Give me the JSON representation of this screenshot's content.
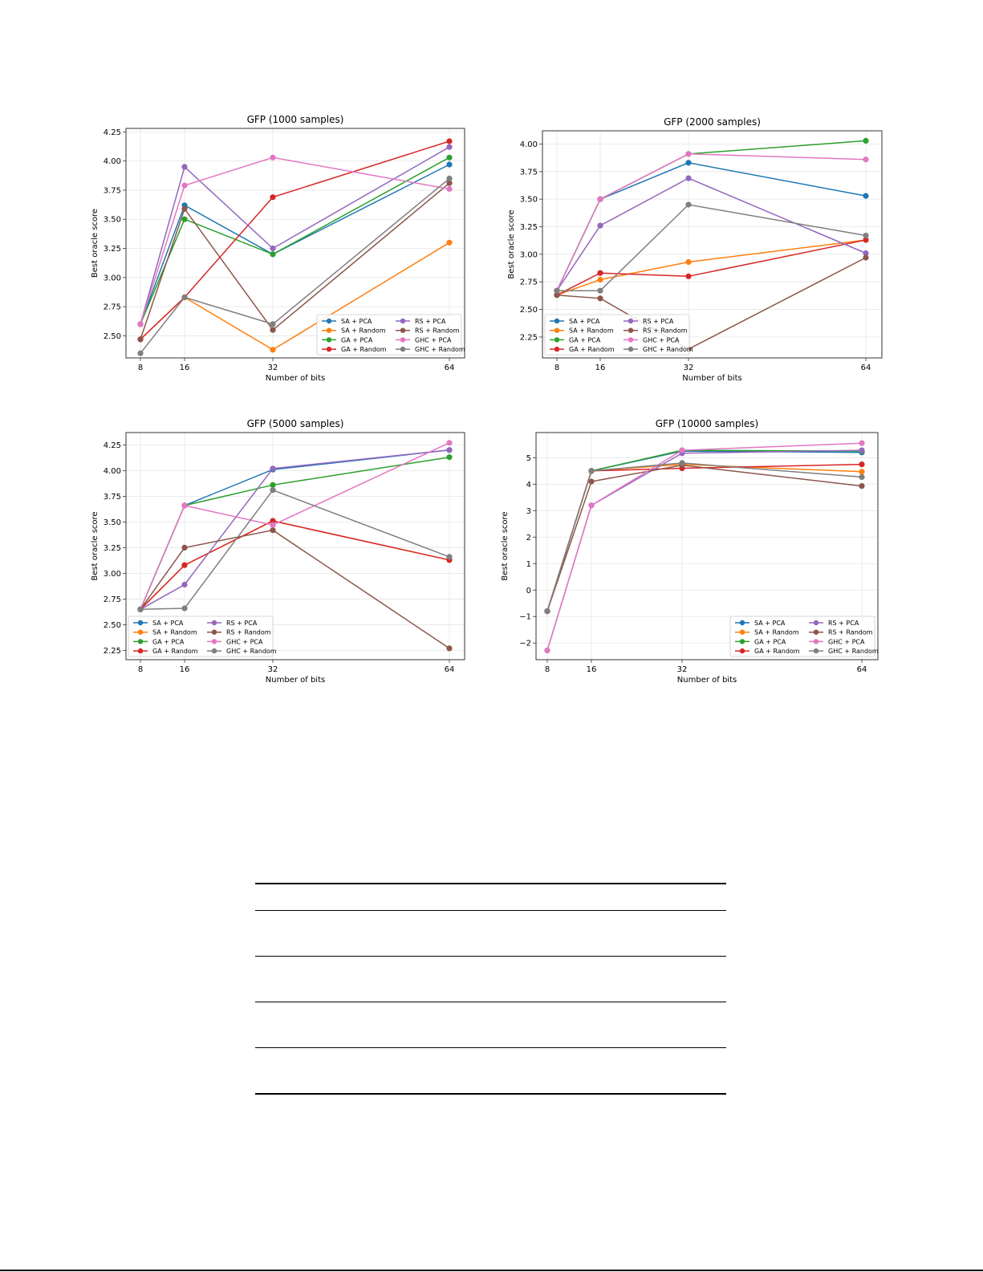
{
  "page": {
    "figure_grid": "2x2",
    "empty_table": {
      "rule_count": 6
    }
  },
  "legend_labels": [
    "SA + PCA",
    "SA + Random",
    "GA + PCA",
    "GA + Random",
    "RS + PCA",
    "RS + Random",
    "GHC + PCA",
    "GHC + Random"
  ],
  "series_colors": {
    "SA + PCA": "#1f77b4",
    "SA + Random": "#ff7f0e",
    "GA + PCA": "#2ca02c",
    "GA + Random": "#d62728",
    "RS + PCA": "#9467bd",
    "RS + Random": "#8c564b",
    "GHC + PCA": "#e377c2",
    "GHC + Random": "#7f7f7f"
  },
  "chart_data": [
    {
      "type": "line",
      "title": "GFP (1000 samples)",
      "xlabel": "Number of bits",
      "ylabel": "Best oracle score",
      "x": [
        8,
        16,
        32,
        64
      ],
      "xticks": [
        "8",
        "16",
        "32",
        "64"
      ],
      "yticks": [
        "2.50",
        "2.75",
        "3.00",
        "3.25",
        "3.50",
        "3.75",
        "4.00",
        "4.25"
      ],
      "ylim": [
        2.31,
        4.28
      ],
      "grid": true,
      "legend_position": "lower right",
      "series": [
        {
          "name": "SA + PCA",
          "values": [
            2.6,
            3.62,
            3.2,
            3.97
          ]
        },
        {
          "name": "SA + Random",
          "values": [
            2.47,
            2.83,
            2.38,
            3.3
          ]
        },
        {
          "name": "GA + PCA",
          "values": [
            2.6,
            3.5,
            3.2,
            4.03
          ]
        },
        {
          "name": "GA + Random",
          "values": [
            2.47,
            2.83,
            3.69,
            4.17
          ]
        },
        {
          "name": "RS + PCA",
          "values": [
            2.6,
            3.95,
            3.25,
            4.12
          ]
        },
        {
          "name": "RS + Random",
          "values": [
            2.47,
            3.59,
            2.55,
            3.81
          ]
        },
        {
          "name": "GHC + PCA",
          "values": [
            2.6,
            3.79,
            4.03,
            3.76
          ]
        },
        {
          "name": "GHC + Random",
          "values": [
            2.35,
            2.83,
            2.6,
            3.85
          ]
        }
      ]
    },
    {
      "type": "line",
      "title": "GFP (2000 samples)",
      "xlabel": "Number of bits",
      "ylabel": "Best oracle score",
      "x": [
        8,
        16,
        32,
        64
      ],
      "xticks": [
        "8",
        "16",
        "32",
        "64"
      ],
      "yticks": [
        "2.25",
        "2.50",
        "2.75",
        "3.00",
        "3.25",
        "3.50",
        "3.75",
        "4.00"
      ],
      "ylim": [
        2.06,
        4.12
      ],
      "grid": true,
      "legend_position": "lower left",
      "series": [
        {
          "name": "SA + PCA",
          "values": [
            2.67,
            3.5,
            3.83,
            3.53
          ]
        },
        {
          "name": "SA + Random",
          "values": [
            2.63,
            2.77,
            2.93,
            3.13
          ]
        },
        {
          "name": "GA + PCA",
          "values": [
            2.67,
            3.5,
            3.91,
            4.03
          ]
        },
        {
          "name": "GA + Random",
          "values": [
            2.63,
            2.83,
            2.8,
            3.13
          ]
        },
        {
          "name": "RS + PCA",
          "values": [
            2.67,
            3.26,
            3.69,
            3.01
          ]
        },
        {
          "name": "RS + Random",
          "values": [
            2.63,
            2.6,
            2.14,
            2.97
          ]
        },
        {
          "name": "GHC + PCA",
          "values": [
            2.67,
            3.5,
            3.91,
            3.86
          ]
        },
        {
          "name": "GHC + Random",
          "values": [
            2.67,
            2.67,
            3.45,
            3.17
          ]
        }
      ]
    },
    {
      "type": "line",
      "title": "GFP (5000 samples)",
      "xlabel": "Number of bits",
      "ylabel": "Best oracle score",
      "x": [
        8,
        16,
        32,
        64
      ],
      "xticks": [
        "8",
        "16",
        "32",
        "64"
      ],
      "yticks": [
        "2.25",
        "2.50",
        "2.75",
        "3.00",
        "3.25",
        "3.50",
        "3.75",
        "4.00",
        "4.25"
      ],
      "ylim": [
        2.16,
        4.37
      ],
      "grid": true,
      "legend_position": "lower left",
      "series": [
        {
          "name": "SA + PCA",
          "values": [
            2.65,
            3.66,
            4.01,
            4.2
          ]
        },
        {
          "name": "SA + Random",
          "values": [
            2.65,
            3.08,
            3.51,
            3.13
          ]
        },
        {
          "name": "GA + PCA",
          "values": [
            2.65,
            3.66,
            3.86,
            4.13
          ]
        },
        {
          "name": "GA + Random",
          "values": [
            2.65,
            3.08,
            3.51,
            3.13
          ]
        },
        {
          "name": "RS + PCA",
          "values": [
            2.65,
            2.89,
            4.02,
            4.2
          ]
        },
        {
          "name": "RS + Random",
          "values": [
            2.65,
            3.25,
            3.42,
            2.27
          ]
        },
        {
          "name": "GHC + PCA",
          "values": [
            2.65,
            3.66,
            3.47,
            4.27
          ]
        },
        {
          "name": "GHC + Random",
          "values": [
            2.65,
            2.66,
            3.81,
            3.16
          ]
        }
      ]
    },
    {
      "type": "line",
      "title": "GFP (10000 samples)",
      "xlabel": "Number of bits",
      "ylabel": "Best oracle score",
      "x": [
        8,
        16,
        32,
        64
      ],
      "xticks": [
        "8",
        "16",
        "32",
        "64"
      ],
      "yticks": [
        "−2",
        "−1",
        "0",
        "1",
        "2",
        "3",
        "4",
        "5"
      ],
      "ytick_values": [
        -2,
        -1,
        0,
        1,
        2,
        3,
        4,
        5
      ],
      "ylim": [
        -2.63,
        5.95
      ],
      "grid": true,
      "legend_position": "lower right",
      "series": [
        {
          "name": "SA + PCA",
          "values": [
            -0.8,
            4.5,
            5.25,
            5.2
          ]
        },
        {
          "name": "SA + Random",
          "values": [
            -0.8,
            4.5,
            4.75,
            4.47
          ]
        },
        {
          "name": "GA + PCA",
          "values": [
            -0.8,
            4.5,
            5.28,
            5.25
          ]
        },
        {
          "name": "GA + Random",
          "values": [
            -0.8,
            4.5,
            4.6,
            4.75
          ]
        },
        {
          "name": "RS + PCA",
          "values": [
            -2.28,
            3.2,
            5.17,
            5.28
          ]
        },
        {
          "name": "RS + Random",
          "values": [
            -0.8,
            4.1,
            4.72,
            3.93
          ]
        },
        {
          "name": "GHC + PCA",
          "values": [
            -2.28,
            3.2,
            5.28,
            5.55
          ]
        },
        {
          "name": "GHC + Random",
          "values": [
            -0.8,
            4.5,
            4.8,
            4.27
          ]
        }
      ]
    }
  ]
}
